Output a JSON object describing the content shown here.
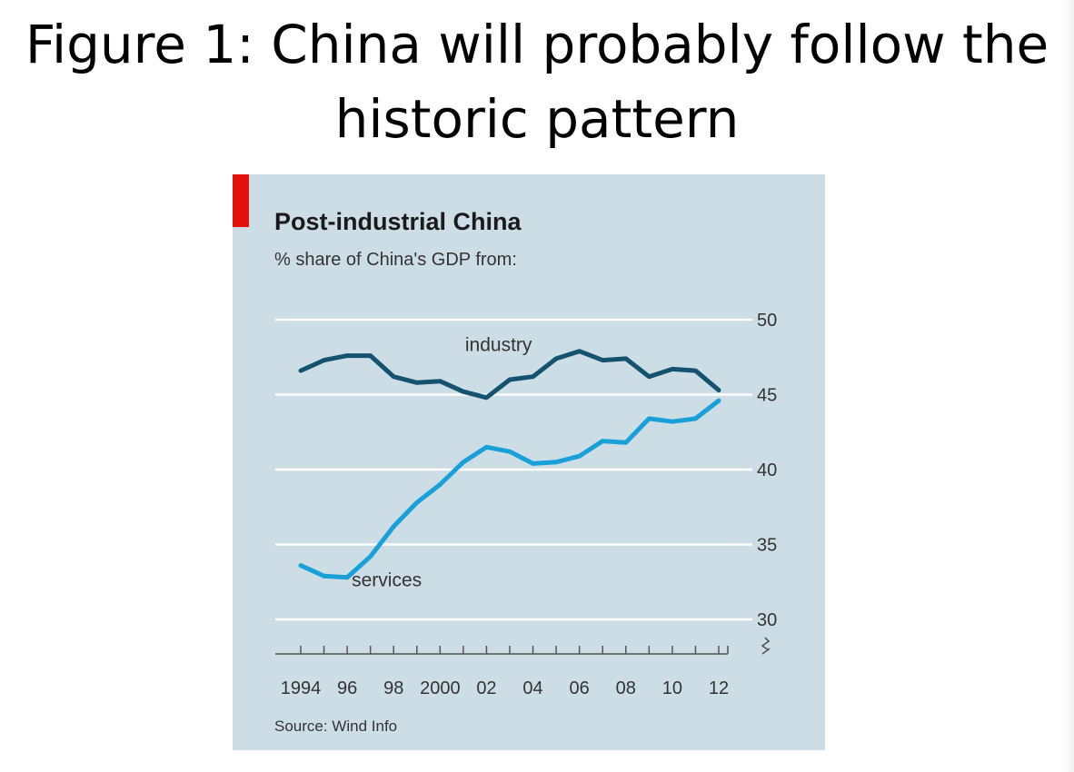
{
  "slide": {
    "title_line1": "Figure 1: China will probably follow the",
    "title_line2": "historic pattern"
  },
  "colors": {
    "panel_bg": "#cddde6",
    "accent_red": "#e3120b",
    "industry": "#145270",
    "services": "#1aa0d8",
    "gridline": "#ffffff"
  },
  "chart_data": {
    "type": "line",
    "title": "Post-industrial China",
    "subtitle": "% share of China's GDP from:",
    "source": "Source: Wind Info",
    "x": [
      1994,
      1995,
      1996,
      1997,
      1998,
      1999,
      2000,
      2001,
      2002,
      2003,
      2004,
      2005,
      2006,
      2007,
      2008,
      2009,
      2010,
      2011,
      2012
    ],
    "x_tick_labels": [
      "1994",
      "96",
      "98",
      "2000",
      "02",
      "04",
      "06",
      "08",
      "10",
      "12"
    ],
    "y_ticks": [
      30,
      35,
      40,
      45,
      50
    ],
    "ylim": [
      30,
      50
    ],
    "grid": true,
    "axis_break": true,
    "series": [
      {
        "name": "industry",
        "color": "#145270",
        "values": [
          46.6,
          47.3,
          47.6,
          47.6,
          46.2,
          45.8,
          45.9,
          45.2,
          44.8,
          46.0,
          46.2,
          47.4,
          47.9,
          47.3,
          47.4,
          46.2,
          46.7,
          46.6,
          45.3
        ]
      },
      {
        "name": "services",
        "color": "#1aa0d8",
        "values": [
          33.6,
          32.9,
          32.8,
          34.2,
          36.2,
          37.8,
          39.0,
          40.5,
          41.5,
          41.2,
          40.4,
          40.5,
          40.9,
          41.9,
          41.8,
          43.4,
          43.2,
          43.4,
          44.6
        ]
      }
    ]
  }
}
